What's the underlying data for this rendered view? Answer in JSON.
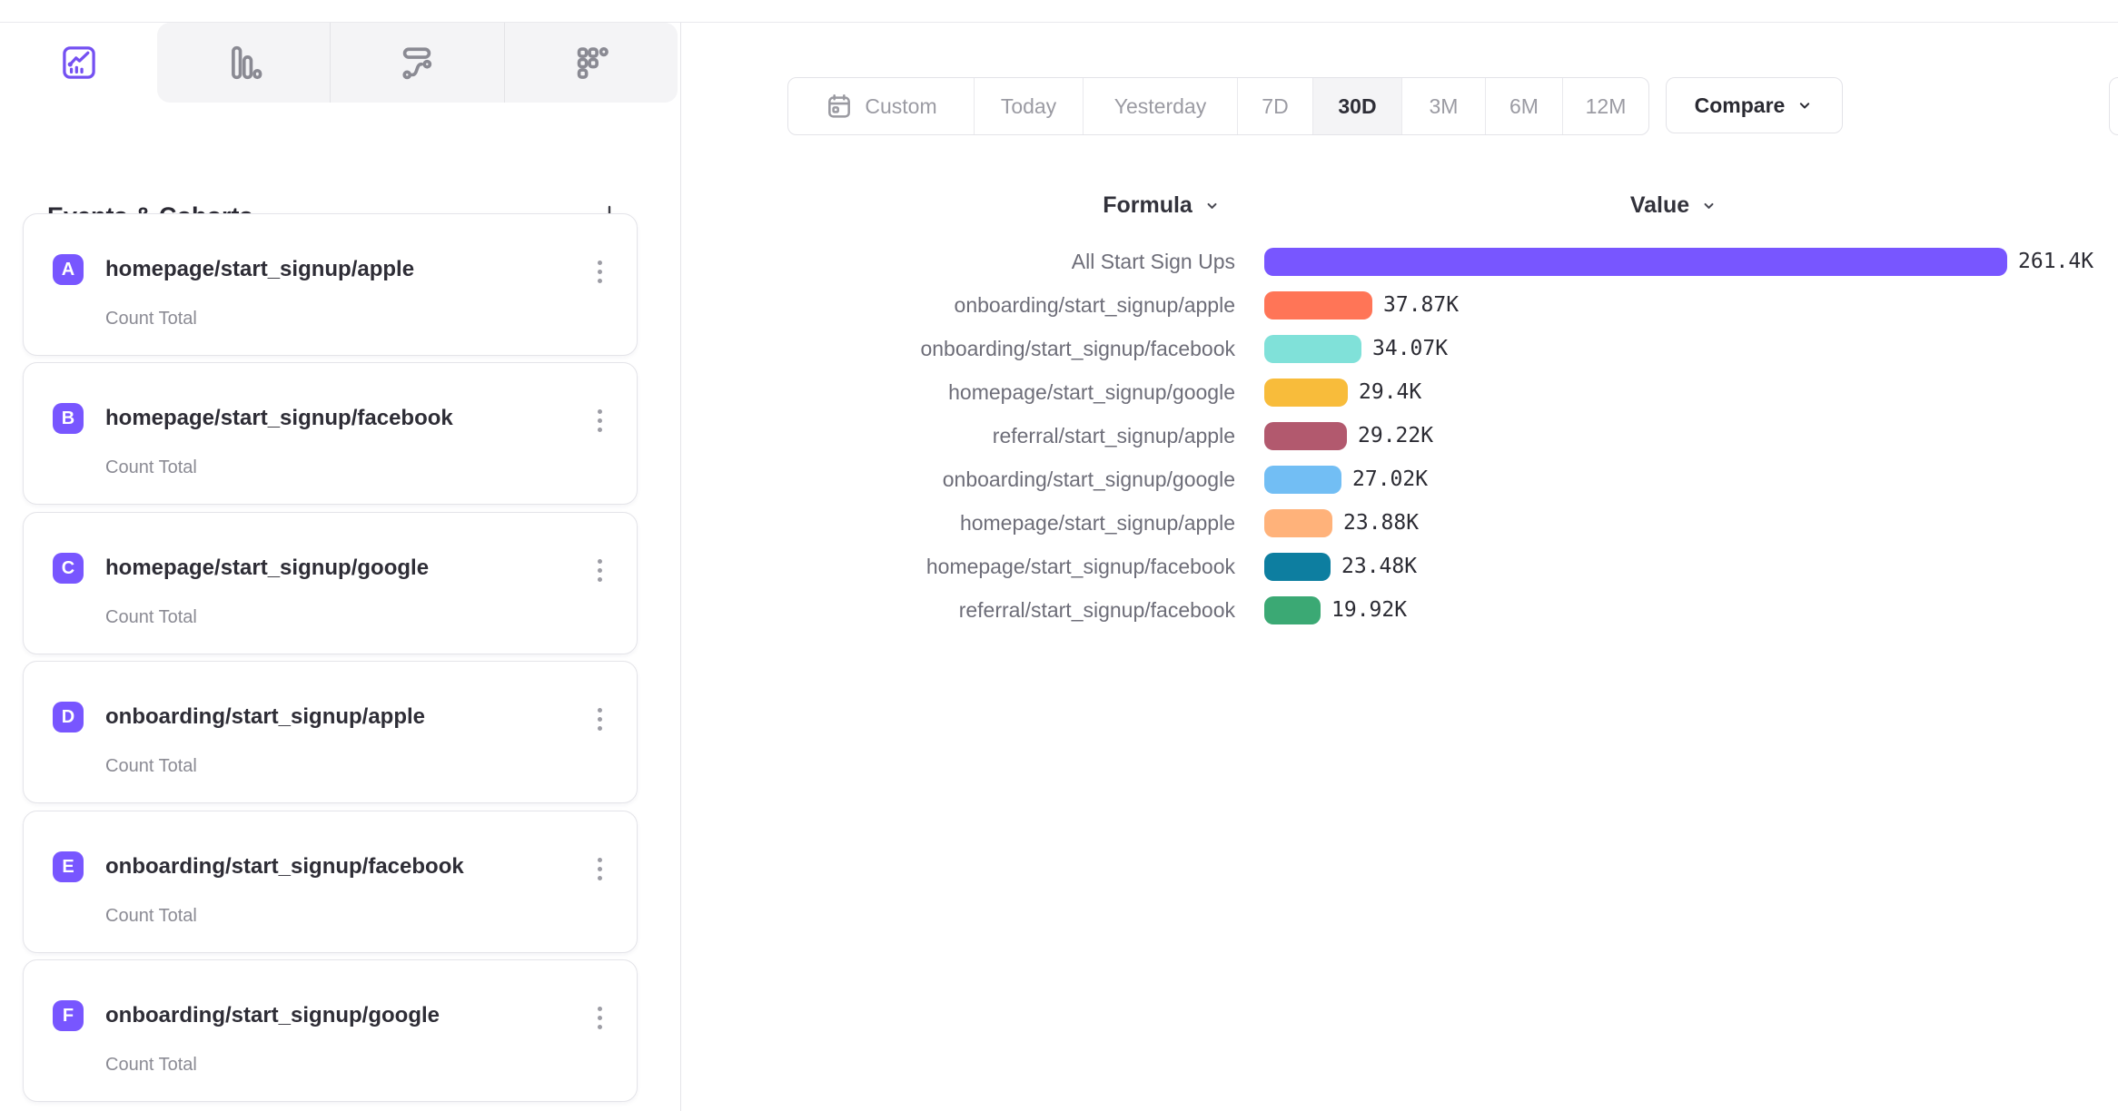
{
  "tabs": [
    {
      "id": "insights",
      "icon": "line-chart-icon",
      "active": true
    },
    {
      "id": "bar",
      "icon": "bar-chart-icon",
      "active": false
    },
    {
      "id": "flows",
      "icon": "flows-icon",
      "active": false
    },
    {
      "id": "retention",
      "icon": "dots-grid-icon",
      "active": false
    }
  ],
  "sidebar": {
    "heading": "Events & Cohorts",
    "events": [
      {
        "badge": "A",
        "name": "homepage/start_signup/apple",
        "metric": "Count Total"
      },
      {
        "badge": "B",
        "name": "homepage/start_signup/facebook",
        "metric": "Count Total"
      },
      {
        "badge": "C",
        "name": "homepage/start_signup/google",
        "metric": "Count Total"
      },
      {
        "badge": "D",
        "name": "onboarding/start_signup/apple",
        "metric": "Count Total"
      },
      {
        "badge": "E",
        "name": "onboarding/start_signup/facebook",
        "metric": "Count Total"
      },
      {
        "badge": "F",
        "name": "onboarding/start_signup/google",
        "metric": "Count Total"
      }
    ]
  },
  "toolbar": {
    "ranges": [
      "Custom",
      "Today",
      "Yesterday",
      "7D",
      "30D",
      "3M",
      "6M",
      "12M"
    ],
    "active_range": "30D",
    "compare_label": "Compare"
  },
  "chart_data": {
    "type": "bar",
    "orientation": "horizontal",
    "columns": {
      "formula": "Formula",
      "value": "Value"
    },
    "max_value": 261400,
    "rows": [
      {
        "label": "All Start Sign Ups",
        "value": 261400,
        "display": "261.4K",
        "color": "#7856FF"
      },
      {
        "label": "onboarding/start_signup/apple",
        "value": 37870,
        "display": "37.87K",
        "color": "#FF7557"
      },
      {
        "label": "onboarding/start_signup/facebook",
        "value": 34070,
        "display": "34.07K",
        "color": "#80E1D9"
      },
      {
        "label": "homepage/start_signup/google",
        "value": 29400,
        "display": "29.4K",
        "color": "#F8BC3B"
      },
      {
        "label": "referral/start_signup/apple",
        "value": 29220,
        "display": "29.22K",
        "color": "#B2596E"
      },
      {
        "label": "onboarding/start_signup/google",
        "value": 27020,
        "display": "27.02K",
        "color": "#72BEF4"
      },
      {
        "label": "homepage/start_signup/apple",
        "value": 23880,
        "display": "23.88K",
        "color": "#FFB27A"
      },
      {
        "label": "homepage/start_signup/facebook",
        "value": 23480,
        "display": "23.48K",
        "color": "#0D7EA0"
      },
      {
        "label": "referral/start_signup/facebook",
        "value": 19920,
        "display": "19.92K",
        "color": "#3BA974"
      }
    ]
  },
  "colors": {
    "accent": "#7856FF",
    "badge": "#7856FF",
    "inactive_icon": "#8A8A93",
    "segment_text": "#9B9BA3"
  }
}
